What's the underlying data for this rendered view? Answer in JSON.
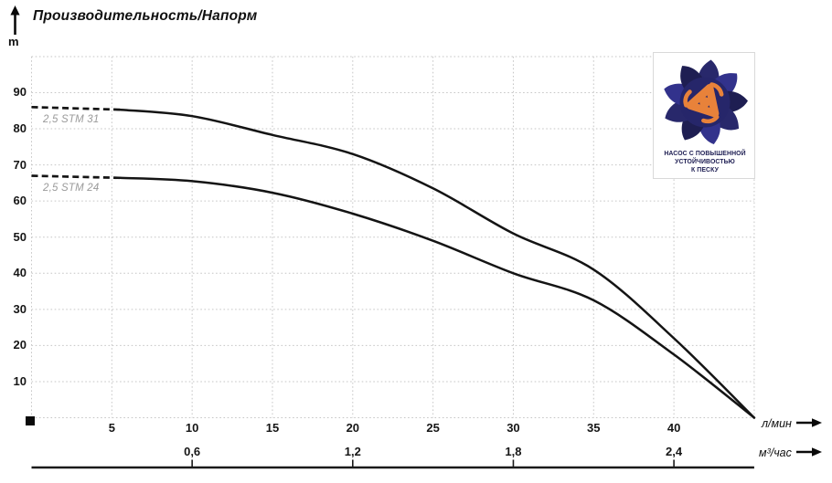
{
  "title": "Производительность/Напорм",
  "y_axis_unit": "m",
  "logo": {
    "lines": [
      "НАСОС С ПОВЫШЕННОЙ",
      "УСТОЙЧИВОСТЬЮ",
      "К ПЕСКУ"
    ],
    "petal_color": "#28286b",
    "petal_color_alt": "#32328c",
    "petal_color_dark": "#1e1e52",
    "swirl_color": "#e8823a",
    "text_color": "#1d1d52"
  },
  "chart_data": {
    "type": "line",
    "title": "Производительность/Напорм",
    "ylabel": "m",
    "xlabel_primary": "л/мин",
    "xlabel_secondary": "м³/час",
    "ylim": [
      0,
      100
    ],
    "xlim_l_min": [
      0,
      45
    ],
    "grid": true,
    "y_ticks_m": [
      10,
      20,
      30,
      40,
      50,
      60,
      70,
      80,
      90
    ],
    "x_ticks_l_min": [
      5,
      10,
      15,
      20,
      25,
      30,
      35,
      40
    ],
    "x_ticks_m3_hour": [
      {
        "label": "0,6",
        "l_min": 10
      },
      {
        "label": "1,2",
        "l_min": 20
      },
      {
        "label": "1,8",
        "l_min": 30
      },
      {
        "label": "2,4",
        "l_min": 40
      }
    ],
    "series": [
      {
        "name": "2,5 STM 31",
        "dashed_until_l_min": 5.5,
        "x_l_min": [
          0,
          5,
          10,
          15,
          20,
          25,
          30,
          35,
          40,
          45
        ],
        "head_m": [
          86,
          85.5,
          83.5,
          78.3,
          73,
          63.5,
          51,
          41,
          22,
          0
        ]
      },
      {
        "name": "2,5 STM 24",
        "dashed_until_l_min": 5.5,
        "x_l_min": [
          0,
          5,
          10,
          15,
          20,
          25,
          30,
          35,
          40,
          45
        ],
        "head_m": [
          67,
          66.5,
          65.5,
          62.3,
          56.5,
          49,
          40,
          32.5,
          17.5,
          0
        ]
      }
    ],
    "curve_color": "#141414",
    "grid_color": "#c6c6c6",
    "axis_color": "#1a1a1a",
    "legend_position": "labels-on-curves-left"
  }
}
